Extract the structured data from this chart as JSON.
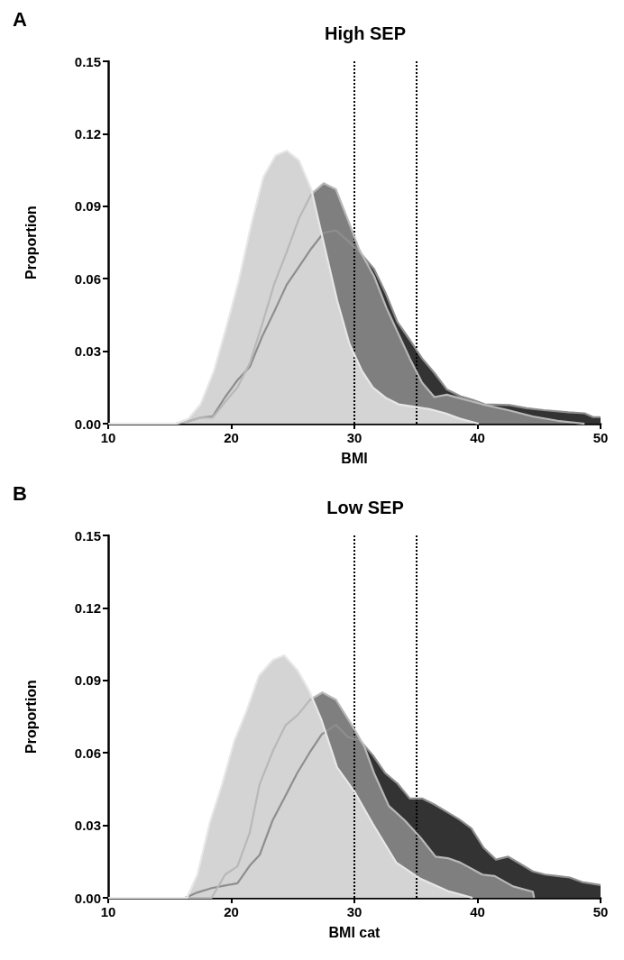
{
  "chart_data": [
    {
      "type": "area",
      "title": "High SEP",
      "annotations": [
        "A"
      ],
      "xlabel": "BMI",
      "ylabel": "Proportion",
      "xlim": [
        10,
        50
      ],
      "xticks": [
        10,
        20,
        30,
        40,
        50
      ],
      "ylim": [
        0,
        0.15
      ],
      "yticks": [
        {
          "value": 0,
          "label": "0.00"
        },
        0.03,
        0.06,
        0.09,
        0.12,
        0.15
      ],
      "grid": false,
      "marker": "none",
      "line_style": "solid",
      "ref_lines": [
        {
          "axis": "x",
          "value": 30,
          "color": "#000000",
          "line_style": "dotted"
        },
        {
          "axis": "x",
          "value": 35,
          "color": "#000000",
          "line_style": "dotted"
        }
      ],
      "series": [
        {
          "color": "#333333",
          "x": [
            10,
            15.5,
            16.5,
            17.5,
            18.5,
            19.5,
            20.5,
            21.5,
            22.5,
            23.5,
            24.5,
            25.5,
            26.5,
            27.5,
            28.5,
            29.5,
            30.6,
            31.6,
            32.5,
            33.5,
            34.5,
            35.5,
            36.5,
            37.5,
            38.6,
            39.6,
            40.6,
            42.6,
            44,
            45.4,
            47.4,
            48.7,
            49.4,
            50
          ],
          "values": [
            0,
            0,
            0.001,
            0.0025,
            0.003,
            0.011,
            0.018,
            0.0235,
            0.036,
            0.0465,
            0.0575,
            0.065,
            0.0725,
            0.079,
            0.08,
            0.0756,
            0.07,
            0.064,
            0.0545,
            0.042,
            0.0347,
            0.027,
            0.021,
            0.0142,
            0.0114,
            0.0099,
            0.008,
            0.0077,
            0.0064,
            0.0056,
            0.0047,
            0.0043,
            0.0027,
            0.0027
          ]
        },
        {
          "color": "#7f7f7f",
          "x": [
            10,
            15.5,
            16.5,
            17.5,
            18.5,
            19.5,
            20.5,
            21.5,
            22.5,
            23.5,
            24.5,
            25.5,
            26.5,
            27.5,
            28.5,
            29.5,
            30.4,
            31.6,
            32.6,
            33.5,
            34.5,
            35.5,
            36.5,
            37.5,
            38.6,
            40.4,
            42.5,
            44.5,
            46.5,
            48.7
          ],
          "values": [
            0,
            0,
            0.001,
            0.0025,
            0.0025,
            0.009,
            0.015,
            0.025,
            0.041,
            0.058,
            0.071,
            0.085,
            0.095,
            0.0995,
            0.097,
            0.084,
            0.072,
            0.061,
            0.048,
            0.038,
            0.027,
            0.017,
            0.011,
            0.012,
            0.0105,
            0.008,
            0.0056,
            0.003,
            0.0012,
            0
          ]
        },
        {
          "color": "#d4d4d4",
          "x": [
            10,
            15.5,
            16.5,
            17.5,
            18.6,
            19.6,
            20.6,
            21.6,
            22.6,
            23.6,
            24.5,
            25.5,
            26.5,
            27.5,
            28.6,
            29.6,
            30.6,
            31.5,
            32.6,
            33.6,
            36.1,
            37.4,
            38.6,
            40.1
          ],
          "values": [
            0,
            0,
            0.002,
            0.008,
            0.022,
            0.04,
            0.059,
            0.082,
            0.102,
            0.111,
            0.113,
            0.109,
            0.097,
            0.075,
            0.051,
            0.033,
            0.022,
            0.015,
            0.0105,
            0.008,
            0.006,
            0.0043,
            0.002,
            0
          ]
        }
      ]
    },
    {
      "type": "area",
      "title": "Low SEP",
      "annotations": [
        "B"
      ],
      "xlabel": "BMI cat",
      "ylabel": "Proportion",
      "xlim": [
        10,
        50
      ],
      "xticks": [
        10,
        20,
        30,
        40,
        50
      ],
      "ylim": [
        0,
        0.15
      ],
      "yticks": [
        {
          "value": 0,
          "label": "0.00"
        },
        0.03,
        0.06,
        0.09,
        0.12,
        0.15
      ],
      "grid": false,
      "marker": "none",
      "line_style": "solid",
      "ref_lines": [
        {
          "axis": "x",
          "value": 30,
          "color": "#000000",
          "line_style": "dotted"
        },
        {
          "axis": "x",
          "value": 35,
          "color": "#000000",
          "line_style": "dotted"
        }
      ],
      "series": [
        {
          "color": "#333333",
          "x": [
            10,
            16.25,
            17.25,
            18.4,
            19.4,
            20.5,
            21.5,
            22.3,
            23.35,
            24.35,
            25.35,
            26.35,
            27.35,
            28.5,
            29.5,
            30.4,
            31.5,
            32.5,
            33.5,
            34.5,
            35.5,
            36.5,
            37.5,
            38.5,
            39.5,
            40.5,
            41.5,
            42.5,
            43.5,
            44.5,
            45.5,
            46.5,
            47.5,
            48.5,
            50
          ],
          "values": [
            0,
            0,
            0.0022,
            0.004,
            0.005,
            0.006,
            0.0133,
            0.0177,
            0.032,
            0.0417,
            0.0516,
            0.06,
            0.0677,
            0.0716,
            0.0664,
            0.0654,
            0.059,
            0.0516,
            0.0473,
            0.0411,
            0.0411,
            0.0386,
            0.0356,
            0.0325,
            0.0288,
            0.0207,
            0.0158,
            0.017,
            0.014,
            0.0109,
            0.0096,
            0.009,
            0.0084,
            0.0065,
            0.0053
          ]
        },
        {
          "color": "#7f7f7f",
          "x": [
            10,
            18.4,
            19.5,
            20.5,
            21.5,
            22.3,
            23.4,
            24.4,
            25.4,
            26.4,
            27.4,
            28.5,
            29.8,
            30.8,
            31.6,
            32.8,
            34.1,
            35.4,
            36.6,
            37.6,
            38.6,
            40.4,
            41.4,
            42.9,
            44.5,
            44.6
          ],
          "values": [
            0,
            0,
            0.0096,
            0.013,
            0.027,
            0.047,
            0.061,
            0.0714,
            0.0757,
            0.082,
            0.085,
            0.082,
            0.0714,
            0.0627,
            0.0516,
            0.038,
            0.032,
            0.0247,
            0.017,
            0.0164,
            0.0146,
            0.0096,
            0.009,
            0.0047,
            0.0025,
            0
          ]
        },
        {
          "color": "#d4d4d4",
          "x": [
            10,
            16.4,
            17.25,
            18.25,
            19.25,
            20.25,
            21.25,
            22.25,
            23.4,
            24.3,
            25.4,
            26.3,
            27.3,
            28.6,
            30,
            31.5,
            33.4,
            35.4,
            37.6,
            39.6
          ],
          "values": [
            0,
            0,
            0.0096,
            0.031,
            0.047,
            0.065,
            0.0775,
            0.092,
            0.0985,
            0.1004,
            0.094,
            0.086,
            0.074,
            0.054,
            0.044,
            0.0306,
            0.0146,
            0.0078,
            0.0028,
            0
          ]
        }
      ]
    }
  ]
}
